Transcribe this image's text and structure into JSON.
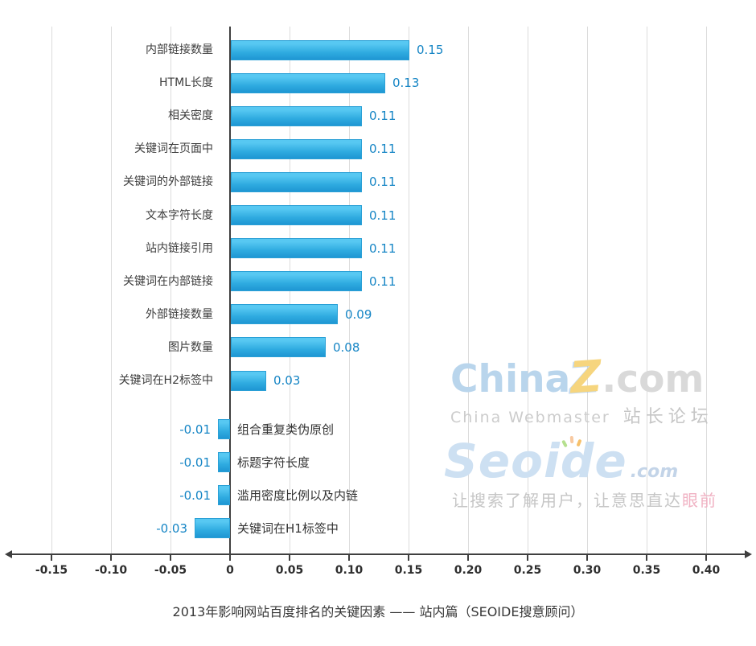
{
  "chart_data": {
    "type": "bar",
    "orientation": "horizontal",
    "title": "2013年影响网站百度排名的关键因素 —— 站内篇（SEOIDE搜意顾问）",
    "categories": [
      "内部链接数量",
      "HTML长度",
      "相关密度",
      "关键词在页面中",
      "关键词的外部链接",
      "文本字符长度",
      "站内链接引用",
      "关键词在内部链接",
      "外部链接数量",
      "图片数量",
      "关键词在H2标签中",
      "组合重复类伪原创",
      "标题字符长度",
      "滥用密度比例以及内链",
      "关键词在H1标签中"
    ],
    "values": [
      0.15,
      0.13,
      0.11,
      0.11,
      0.11,
      0.11,
      0.11,
      0.11,
      0.09,
      0.08,
      0.03,
      -0.01,
      -0.01,
      -0.01,
      -0.03
    ],
    "value_labels": [
      "0.15",
      "0.13",
      "0.11",
      "0.11",
      "0.11",
      "0.11",
      "0.11",
      "0.11",
      "0.09",
      "0.08",
      "0.03",
      "-0.01",
      "-0.01",
      "-0.01",
      "-0.03"
    ],
    "x_ticks": [
      -0.15,
      -0.1,
      -0.05,
      0,
      0.05,
      0.1,
      0.15,
      0.2,
      0.25,
      0.3,
      0.35,
      0.4
    ],
    "x_tick_labels": [
      "-0.15",
      "-0.10",
      "-0.05",
      "0",
      "0.05",
      "0.10",
      "0.15",
      "0.20",
      "0.25",
      "0.30",
      "0.35",
      "0.40"
    ],
    "xlim": [
      -0.185,
      0.435
    ],
    "grid": true,
    "legend_position": "none",
    "gap_after_index": 10,
    "colors": {
      "bar_top": "#57c8f2",
      "bar_bottom": "#1e96d3",
      "bar_border": "#2aa0d6",
      "value_label": "#1585c5",
      "category_label": "#3d3d3d",
      "grid": "#dcdcdc",
      "axis": "#3f3f3f",
      "tick_label": "#2e2e2e"
    }
  },
  "watermarks": {
    "chinaz": {
      "brand_prefix": "China",
      "brand_z": "Z",
      "brand_suffix": ".com",
      "subtitle_en": "China Webmaster",
      "subtitle_cn": "站长论坛",
      "colors": {
        "blue": "#b9d5ec",
        "yellow": "#f6d57e",
        "gray": "#d9d9d9",
        "subtitle": "#cccccc"
      }
    },
    "seoide": {
      "brand": "Seoide",
      "suffix": ".com",
      "tagline_main": "让搜索了解用户，让意思直达",
      "tagline_accent": "眼前",
      "colors": {
        "brand": "#cde0f2",
        "tagline": "#c6c6c6",
        "accent": "#f0b2c3"
      }
    }
  }
}
